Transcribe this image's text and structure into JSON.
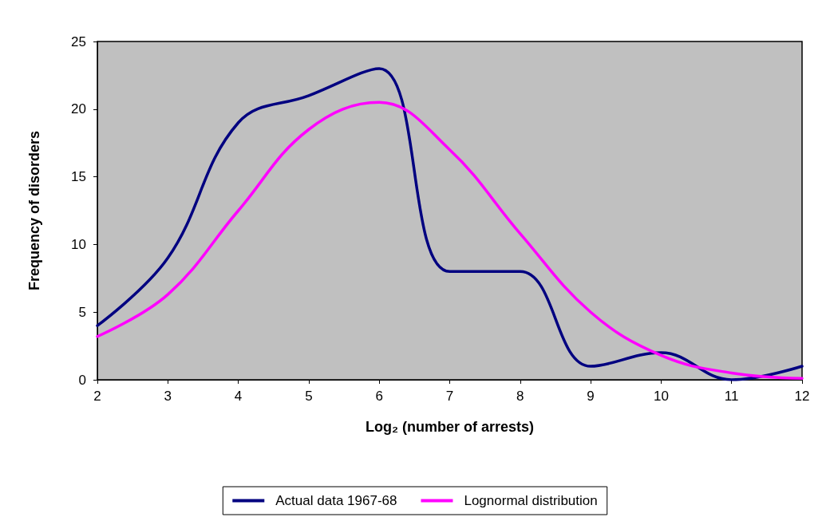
{
  "chart_data": {
    "type": "line",
    "xlabel": "Log₂ (number of arrests)",
    "ylabel": "Frequency of disorders",
    "x": [
      2,
      3,
      4,
      5,
      6,
      7,
      8,
      9,
      10,
      11,
      12
    ],
    "series": [
      {
        "name": "Actual data 1967-68",
        "color": "#000080",
        "values": [
          4,
          9,
          19,
          21,
          23,
          8,
          8,
          1,
          2,
          0,
          1
        ]
      },
      {
        "name": "Lognormal distribution",
        "color": "#ff00ff",
        "values": [
          3.2,
          6.3,
          12.5,
          18.5,
          20.5,
          17,
          10.8,
          5,
          1.8,
          0.5,
          0.1
        ]
      }
    ],
    "xlim": [
      2,
      12
    ],
    "xticks": [
      2,
      3,
      4,
      5,
      6,
      7,
      8,
      9,
      10,
      11,
      12
    ],
    "ylim": [
      0,
      25
    ],
    "yticks": [
      0,
      5,
      10,
      15,
      20,
      25
    ],
    "grid": false,
    "legend": "bottom",
    "marker": "none",
    "line_style": "solid"
  }
}
